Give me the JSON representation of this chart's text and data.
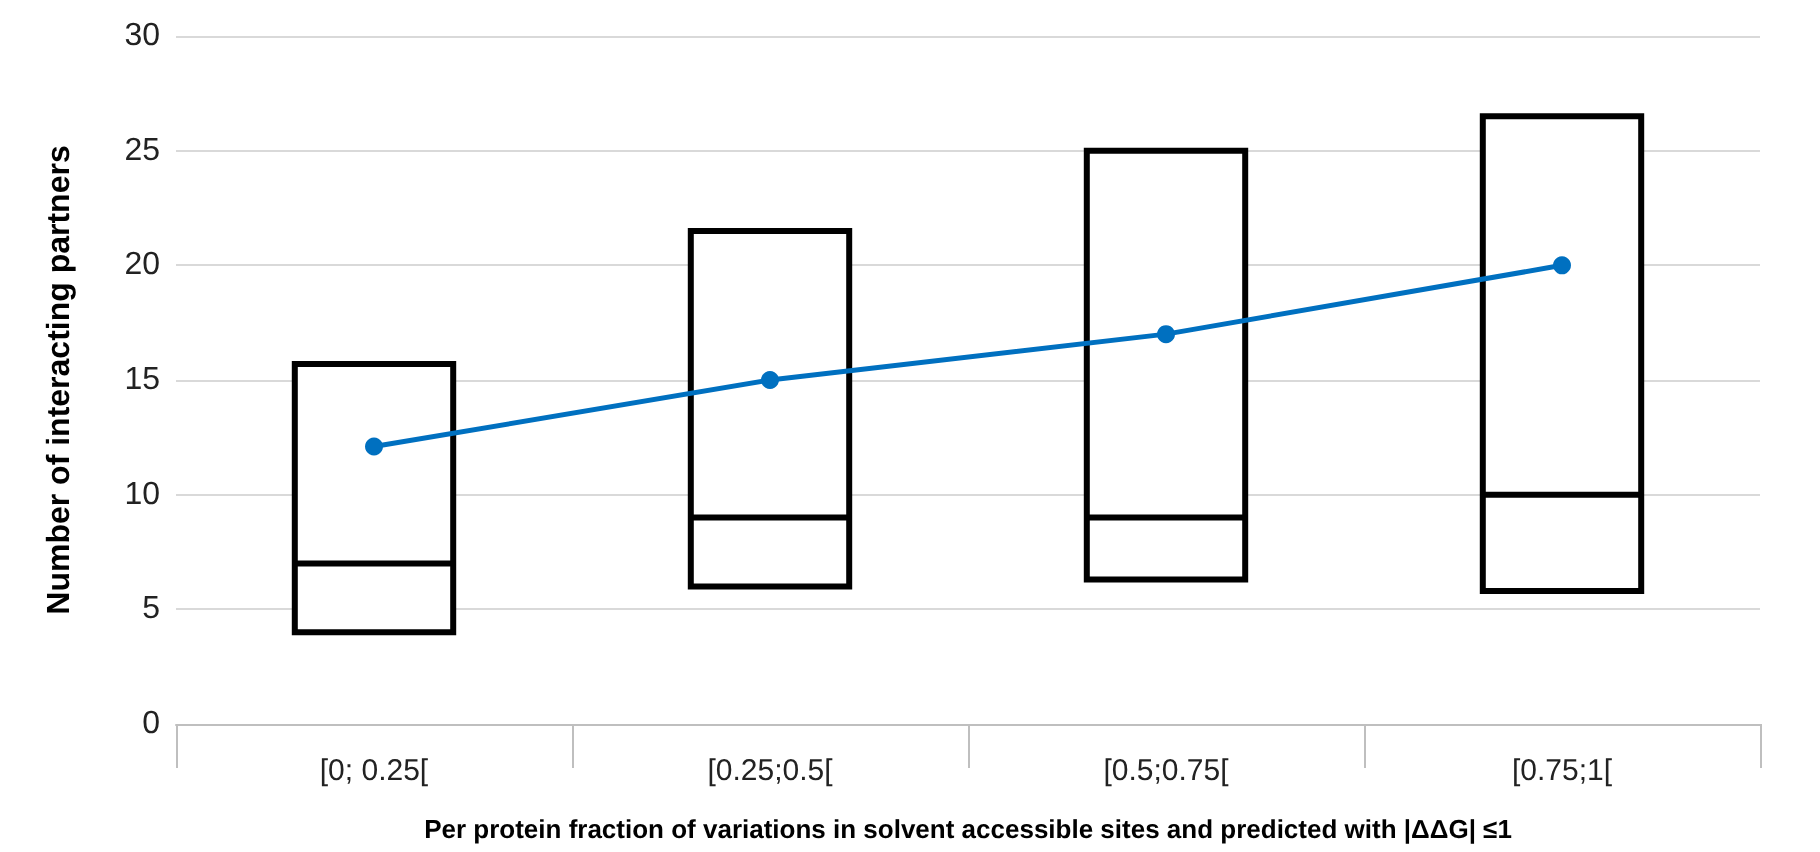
{
  "chart_data": {
    "type": "box",
    "xlabel": "Per protein fraction of variations in solvent accessible sites and predicted with |ΔΔG| ≤1",
    "ylabel": "Number of interacting partners",
    "categories": [
      "[0; 0.25[",
      "[0.25;0.5[",
      "[0.5;0.75[",
      "[0.75;1["
    ],
    "series": [
      {
        "color": "#000000",
        "boxes": [
          {
            "low": 4,
            "q1": 4,
            "median": 7,
            "q3": 15.7,
            "high": 15.7
          },
          {
            "low": 6,
            "q1": 6,
            "median": 9,
            "q3": 21.5,
            "high": 21.5
          },
          {
            "low": 6.3,
            "q1": 6.3,
            "median": 9,
            "q3": 25,
            "high": 25
          },
          {
            "low": 5.8,
            "q1": 5.8,
            "median": 10,
            "q3": 26.5,
            "high": 26.5
          }
        ]
      },
      {
        "type": "line",
        "color": "#0070c0",
        "values": [
          12.1,
          15,
          17,
          20
        ]
      }
    ],
    "marker": "circle",
    "ylim": [
      0,
      30
    ],
    "yticks": [
      0,
      5,
      10,
      15,
      20,
      25,
      30
    ],
    "grid": "y"
  }
}
